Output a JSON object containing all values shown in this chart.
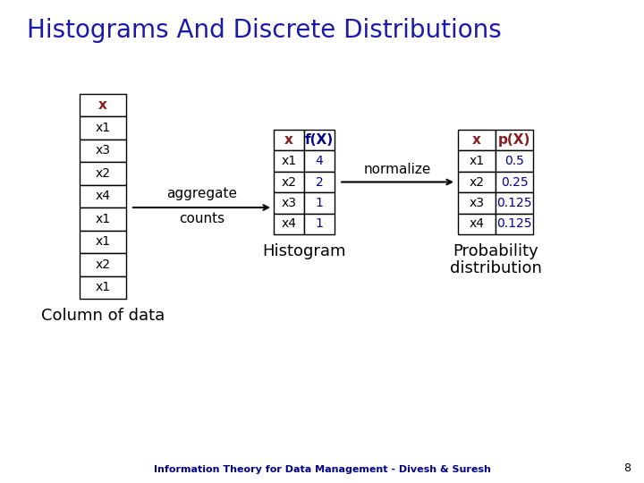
{
  "title": "Histograms And Discrete Distributions",
  "title_color": "#1a1aaa",
  "title_fontsize": 20,
  "background_color": "#ffffff",
  "col1_header": "x",
  "col1_rows": [
    "x1",
    "x3",
    "x2",
    "x4",
    "x1",
    "x1",
    "x2",
    "x1"
  ],
  "col1_header_color": "#8B1A1A",
  "col1_rows_color": "#000000",
  "agg_label_line1": "aggregate",
  "agg_label_line2": "counts",
  "agg_label_color": "#000000",
  "hist_header": [
    "x",
    "f(X)"
  ],
  "hist_header_colors": [
    "#8B1A1A",
    "#00008B"
  ],
  "hist_rows": [
    [
      "x1",
      "4"
    ],
    [
      "x2",
      "2"
    ],
    [
      "x3",
      "1"
    ],
    [
      "x4",
      "1"
    ]
  ],
  "hist_rows_col1_color": "#000000",
  "hist_rows_col2_color": "#00008B",
  "normalize_label": "normalize",
  "normalize_label_color": "#000000",
  "prob_header": [
    "x",
    "p(X)"
  ],
  "prob_header_colors": [
    "#8B1A1A",
    "#8B1A1A"
  ],
  "prob_rows": [
    [
      "x1",
      "0.5"
    ],
    [
      "x2",
      "0.25"
    ],
    [
      "x3",
      "0.125"
    ],
    [
      "x4",
      "0.125"
    ]
  ],
  "prob_rows_col1_color": "#000000",
  "prob_rows_col2_color": "#00008B",
  "col1_label": "Column of data",
  "hist_label": "Histogram",
  "prob_label_line1": "Probability",
  "prob_label_line2": "distribution",
  "footer": "Information Theory for Data Management - Divesh & Suresh",
  "page_num": "8",
  "label_fontsize": 13,
  "table_fontsize": 10,
  "footer_fontsize": 8
}
